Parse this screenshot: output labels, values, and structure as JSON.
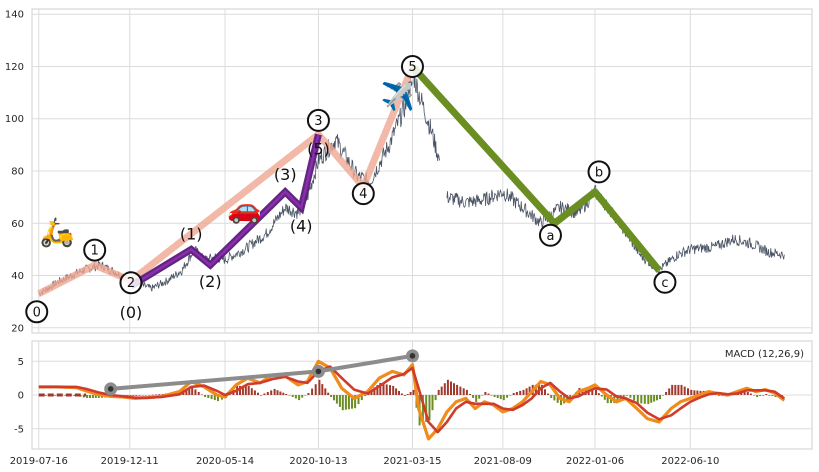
{
  "chart_data": [
    {
      "type": "line",
      "panel": "price",
      "x_axis": "date",
      "ylim": [
        18,
        142
      ],
      "xlim": [
        "2019-07-05",
        "2022-12-25"
      ],
      "y_ticks": [
        20,
        40,
        60,
        80,
        100,
        120,
        140
      ],
      "x_ticks": [
        "2019-07-16",
        "2019-12-11",
        "2020-05-14",
        "2020-10-13",
        "2021-03-15",
        "2021-08-09",
        "2022-01-06",
        "2022-06-10"
      ],
      "grid": true,
      "price_series_color": "#4c5566",
      "price_segments": [
        {
          "name": "",
          "points": [
            [
              "2019-07-16",
              33
            ],
            [
              "2019-08-20",
              38
            ],
            [
              "2019-09-25",
              42
            ],
            [
              "2019-10-25",
              44
            ],
            [
              "2019-11-20",
              41
            ],
            [
              "2019-12-11",
              38
            ],
            [
              "2020-01-15",
              35
            ],
            [
              "2020-02-10",
              38
            ],
            [
              "2020-03-05",
              42
            ],
            [
              "2020-03-25",
              50
            ],
            [
              "2020-04-10",
              46
            ],
            [
              "2020-04-28",
              47
            ],
            [
              "2020-05-14",
              46
            ],
            [
              "2020-06-15",
              50
            ],
            [
              "2020-07-20",
              56
            ],
            [
              "2020-08-20",
              66
            ],
            [
              "2020-09-10",
              64
            ],
            [
              "2020-09-25",
              70
            ],
            [
              "2020-10-13",
              84
            ],
            [
              "2020-11-10",
              92
            ],
            [
              "2020-12-15",
              78
            ],
            [
              "2021-01-05",
              76
            ],
            [
              "2021-02-05",
              90
            ],
            [
              "2021-03-05",
              106
            ],
            [
              "2021-03-15",
              118
            ],
            [
              "2021-03-25",
              110
            ],
            [
              "2021-04-15",
              95
            ],
            [
              "2021-04-28",
              84
            ]
          ]
        },
        {
          "name": "",
          "points": [
            [
              "2021-05-10",
              70
            ],
            [
              "2021-06-10",
              68
            ],
            [
              "2021-07-10",
              69
            ],
            [
              "2021-08-09",
              72
            ],
            [
              "2021-09-10",
              66
            ],
            [
              "2021-10-10",
              60
            ],
            [
              "2021-11-10",
              66
            ],
            [
              "2021-12-10",
              64
            ],
            [
              "2022-01-06",
              72
            ],
            [
              "2022-02-10",
              62
            ],
            [
              "2022-03-20",
              48
            ],
            [
              "2022-04-20",
              42
            ],
            [
              "2022-05-20",
              48
            ],
            [
              "2022-06-10",
              50
            ],
            [
              "2022-07-20",
              51
            ],
            [
              "2022-08-20",
              54
            ],
            [
              "2022-09-20",
              52
            ],
            [
              "2022-10-15",
              49
            ],
            [
              "2022-11-10",
              48
            ]
          ]
        }
      ],
      "waves": [
        {
          "degree": "primary",
          "color": "#f0a892",
          "points": [
            [
              "2019-07-16",
              33
            ],
            [
              "2019-10-15",
              44
            ],
            [
              "2019-12-13",
              38
            ],
            [
              "2020-10-13",
              94
            ],
            [
              "2020-12-25",
              74
            ],
            [
              "2021-03-15",
              120
            ]
          ],
          "labels": [
            "0",
            "1",
            "2",
            "3",
            "4",
            "5"
          ]
        },
        {
          "degree": "intermediate",
          "color": "#5a1a7a",
          "points": [
            [
              "2019-12-13",
              36
            ],
            [
              "2020-03-20",
              50
            ],
            [
              "2020-04-20",
              44
            ],
            [
              "2020-08-20",
              72
            ],
            [
              "2020-09-15",
              66
            ],
            [
              "2020-10-13",
              94
            ]
          ],
          "labels": [
            "(0)",
            "(1)",
            "(2)",
            "(3)",
            "(4)",
            "(5)"
          ]
        },
        {
          "degree": "corrective",
          "color": "#6b8e23",
          "points": [
            [
              "2021-03-15",
              120
            ],
            [
              "2021-11-01",
              60
            ],
            [
              "2022-01-06",
              72
            ],
            [
              "2022-04-20",
              42
            ]
          ],
          "labels": [
            "a",
            "b",
            "c"
          ]
        }
      ],
      "annotations": [
        {
          "type": "emoji",
          "text": "🛵",
          "x": "2019-08-15",
          "y": 53
        },
        {
          "type": "emoji",
          "text": "🚗",
          "x": "2020-06-15",
          "y": 62
        },
        {
          "type": "emoji",
          "text": "✈️",
          "x": "2021-02-20",
          "y": 105
        }
      ]
    },
    {
      "type": "line",
      "panel": "macd",
      "title": "MACD (12,26,9)",
      "x_axis": "date",
      "ylim": [
        -8,
        8
      ],
      "y_ticks": [
        -5,
        0,
        5
      ],
      "x_ticks": [
        "2019-07-16",
        "2019-12-11",
        "2020-05-14",
        "2020-10-13",
        "2021-03-15",
        "2021-08-09",
        "2022-01-06",
        "2022-06-10"
      ],
      "grid": true,
      "x": [
        "2019-07-16",
        "2019-08-15",
        "2019-09-15",
        "2019-10-01",
        "2019-10-20",
        "2019-11-10",
        "2019-12-01",
        "2019-12-20",
        "2020-01-10",
        "2020-02-01",
        "2020-03-01",
        "2020-03-20",
        "2020-04-10",
        "2020-05-01",
        "2020-05-14",
        "2020-06-01",
        "2020-06-20",
        "2020-07-10",
        "2020-08-01",
        "2020-08-20",
        "2020-09-10",
        "2020-09-25",
        "2020-10-13",
        "2020-11-01",
        "2020-11-20",
        "2020-12-10",
        "2021-01-01",
        "2021-01-20",
        "2021-02-10",
        "2021-03-01",
        "2021-03-15",
        "2021-03-25",
        "2021-04-10",
        "2021-04-25",
        "2021-05-10",
        "2021-05-25",
        "2021-06-10",
        "2021-06-25",
        "2021-07-10",
        "2021-07-25",
        "2021-08-09",
        "2021-08-25",
        "2021-09-10",
        "2021-09-25",
        "2021-10-10",
        "2021-10-25",
        "2021-11-10",
        "2021-11-25",
        "2021-12-10",
        "2021-12-25",
        "2022-01-06",
        "2022-01-25",
        "2022-02-10",
        "2022-02-25",
        "2022-03-15",
        "2022-04-01",
        "2022-04-20",
        "2022-05-10",
        "2022-05-25",
        "2022-06-10",
        "2022-06-25",
        "2022-07-10",
        "2022-07-25",
        "2022-08-10",
        "2022-08-25",
        "2022-09-10",
        "2022-09-25",
        "2022-10-10",
        "2022-10-25",
        "2022-11-10"
      ],
      "series": [
        {
          "name": "",
          "role": "macd",
          "color": "#f08b1c",
          "values": [
            1.2,
            1.2,
            1.1,
            0.6,
            0.1,
            -0.2,
            -0.3,
            -0.5,
            -0.4,
            -0.2,
            0.5,
            2.0,
            1.2,
            0.0,
            -0.3,
            1.5,
            2.5,
            1.8,
            3.0,
            2.8,
            1.5,
            2.0,
            5.0,
            4.0,
            1.0,
            -0.5,
            0.5,
            2.5,
            3.5,
            3.0,
            4.5,
            -2.0,
            -6.5,
            -5.0,
            -2.5,
            -1.0,
            -0.5,
            -2.0,
            -1.0,
            -1.5,
            -2.5,
            -2.0,
            -1.0,
            0.5,
            2.0,
            1.5,
            -0.5,
            -1.0,
            0.5,
            1.0,
            1.5,
            0.0,
            -1.0,
            -0.5,
            -2.0,
            -3.5,
            -4.0,
            -2.0,
            -1.0,
            -0.5,
            0.0,
            0.5,
            0.2,
            0.0,
            0.5,
            1.0,
            0.5,
            0.8,
            0.3,
            -0.8
          ]
        },
        {
          "name": "",
          "role": "signal",
          "color": "#d03c2c",
          "values": [
            1.2,
            1.2,
            1.2,
            0.9,
            0.4,
            0.0,
            -0.2,
            -0.4,
            -0.4,
            -0.3,
            0.1,
            1.2,
            1.4,
            0.6,
            0.0,
            0.6,
            1.6,
            1.8,
            2.4,
            2.7,
            2.0,
            1.8,
            3.5,
            4.2,
            2.5,
            0.8,
            0.2,
            1.3,
            2.6,
            3.1,
            4.0,
            1.0,
            -4.0,
            -5.5,
            -4.0,
            -2.0,
            -1.0,
            -1.3,
            -1.3,
            -1.3,
            -2.0,
            -2.2,
            -1.5,
            -0.5,
            1.0,
            1.8,
            0.5,
            -0.5,
            -0.2,
            0.5,
            1.0,
            0.8,
            -0.2,
            -0.5,
            -1.2,
            -2.6,
            -3.6,
            -3.0,
            -2.0,
            -1.0,
            -0.4,
            0.1,
            0.3,
            0.1,
            0.2,
            0.7,
            0.7,
            0.7,
            0.5,
            -0.5
          ]
        }
      ],
      "histogram_colors": {
        "positive": "#a0392c",
        "negative": "#6b8e23"
      },
      "divergence_line": {
        "color": "#8c8c8c",
        "points": [
          [
            "2019-11-10",
            0.9
          ],
          [
            "2020-10-13",
            3.5
          ],
          [
            "2021-03-15",
            5.8
          ]
        ]
      }
    }
  ]
}
